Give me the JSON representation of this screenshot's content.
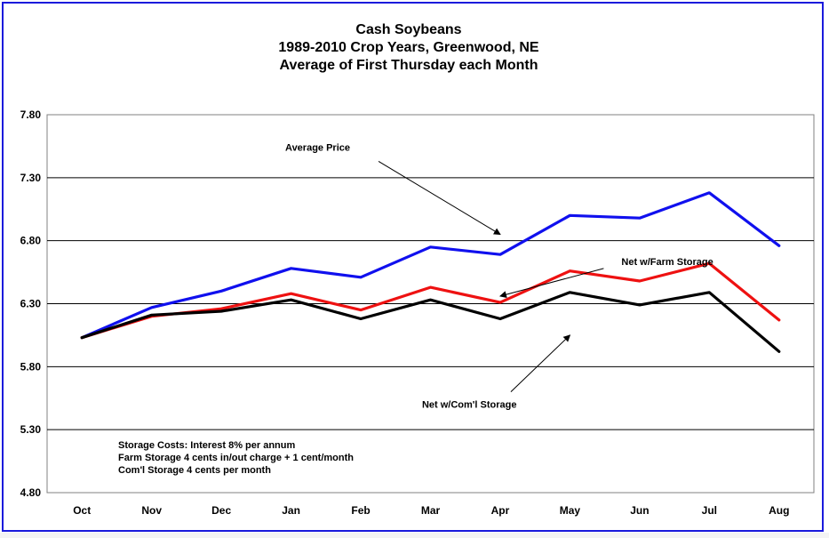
{
  "chart_data": {
    "type": "line",
    "title": [
      "Cash Soybeans",
      "1989-2010  Crop Years, Greenwood, NE",
      "Average of First Thursday each Month"
    ],
    "xlabel": "",
    "ylabel": "",
    "categories": [
      "Oct",
      "Nov",
      "Dec",
      "Jan",
      "Feb",
      "Mar",
      "Apr",
      "May",
      "Jun",
      "Jul",
      "Aug"
    ],
    "ylim": [
      4.8,
      7.8
    ],
    "yticks": [
      "4.80",
      "5.30",
      "5.80",
      "6.30",
      "6.80",
      "7.30",
      "7.80"
    ],
    "grid": "horizontal",
    "series": [
      {
        "name": "Average Price",
        "color": "#1010ee",
        "values": [
          6.03,
          6.27,
          6.4,
          6.58,
          6.51,
          6.75,
          6.69,
          7.0,
          6.98,
          7.18,
          6.76
        ]
      },
      {
        "name": "Net w/Farm Storage",
        "color": "#ee1111",
        "values": [
          6.03,
          6.2,
          6.26,
          6.38,
          6.25,
          6.43,
          6.31,
          6.56,
          6.48,
          6.62,
          6.17
        ]
      },
      {
        "name": "Net w/Com'l Storage",
        "color": "#000000",
        "values": [
          6.03,
          6.21,
          6.24,
          6.33,
          6.18,
          6.33,
          6.18,
          6.39,
          6.29,
          6.39,
          5.92
        ]
      }
    ],
    "annotations": [
      {
        "text": "Average Price",
        "series": 0,
        "arrow_at": {
          "x": "Apr",
          "y": 6.85
        },
        "tail_at": {
          "x": "Feb",
          "y": 7.43
        }
      },
      {
        "text": "Net w/Farm Storage",
        "series": 1,
        "arrow_at": {
          "x": "Apr",
          "y": 6.36
        },
        "tail_at": {
          "x": "May",
          "y": 6.58
        }
      },
      {
        "text": "Net w/Com'l Storage",
        "series": 2,
        "arrow_at": {
          "x": "May",
          "y": 6.05
        },
        "tail_at": {
          "x": "Apr",
          "y": 5.6
        }
      }
    ],
    "notes": [
      "Storage Costs: Interest 8% per annum",
      "Farm Storage 4 cents in/out charge + 1 cent/month",
      "Com'l Storage 4 cents per month"
    ]
  }
}
